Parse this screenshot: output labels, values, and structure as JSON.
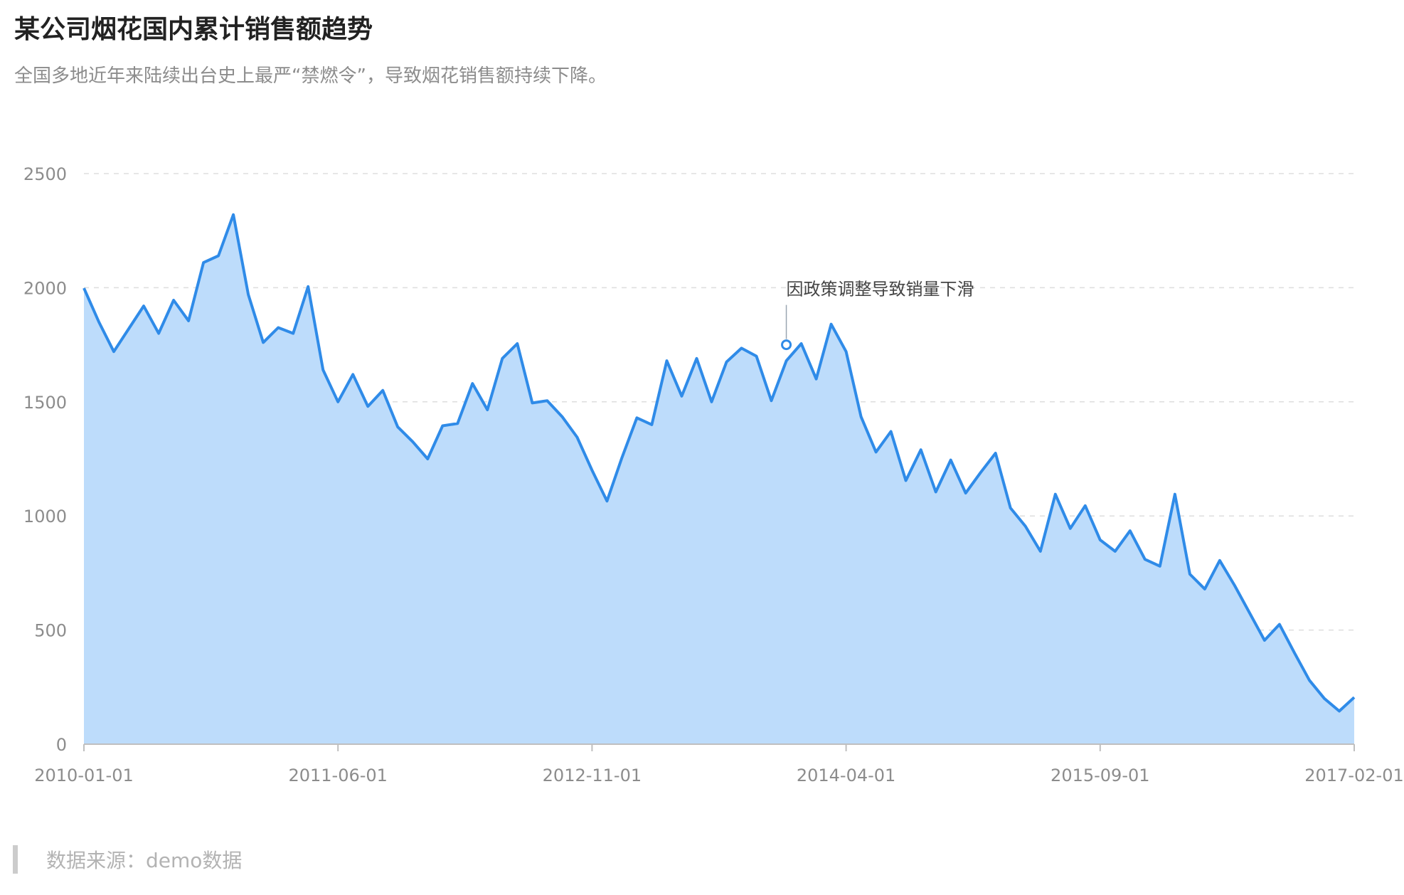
{
  "title": "某公司烟花国内累计销售额趋势",
  "subtitle": "全国多地近年来陆续出台史上最严“禁燃令”，导致烟花销售额持续下降。",
  "source": "数据来源：demo数据",
  "colors": {
    "line": "#2f8be8",
    "area": "#bddcfb",
    "grid": "#dddddd",
    "axis": "#bfbfbf",
    "tick_text": "#8c8c8c",
    "annotation_text": "#444444",
    "annotation_line": "#9aa5b1"
  },
  "chart_data": {
    "type": "area",
    "title": "某公司烟花国内累计销售额趋势",
    "xlabel": "",
    "ylabel": "",
    "ylim": [
      0,
      2500
    ],
    "yticks": [
      0,
      500,
      1000,
      1500,
      2000,
      2500
    ],
    "xticks": [
      "2010-01-01",
      "2011-06-01",
      "2012-11-01",
      "2014-04-01",
      "2015-09-01",
      "2017-02-01"
    ],
    "grid": true,
    "x_start": "2010-01",
    "x_end": "2017-02",
    "x": [
      "2010-01",
      "2010-02",
      "2010-03",
      "2010-04",
      "2010-05",
      "2010-06",
      "2010-07",
      "2010-08",
      "2010-09",
      "2010-10",
      "2010-11",
      "2010-12",
      "2011-01",
      "2011-02",
      "2011-03",
      "2011-04",
      "2011-05",
      "2011-06",
      "2011-07",
      "2011-08",
      "2011-09",
      "2011-10",
      "2011-11",
      "2011-12",
      "2012-01",
      "2012-02",
      "2012-03",
      "2012-04",
      "2012-05",
      "2012-06",
      "2012-07",
      "2012-08",
      "2012-09",
      "2012-10",
      "2012-11",
      "2012-12",
      "2013-01",
      "2013-02",
      "2013-03",
      "2013-04",
      "2013-05",
      "2013-06",
      "2013-07",
      "2013-08",
      "2013-09",
      "2013-10",
      "2013-11",
      "2013-12",
      "2014-01",
      "2014-02",
      "2014-03",
      "2014-04",
      "2014-05",
      "2014-06",
      "2014-07",
      "2014-08",
      "2014-09",
      "2014-10",
      "2014-11",
      "2014-12",
      "2015-01",
      "2015-02",
      "2015-03",
      "2015-04",
      "2015-05",
      "2015-06",
      "2015-07",
      "2015-08",
      "2015-09",
      "2015-10",
      "2015-11",
      "2015-12",
      "2016-01",
      "2016-02",
      "2016-03",
      "2016-04",
      "2016-05",
      "2016-06",
      "2016-07",
      "2016-08",
      "2016-09",
      "2016-10",
      "2016-11",
      "2016-12",
      "2017-01",
      "2017-02"
    ],
    "values": [
      1998,
      1850,
      1720,
      1820,
      1920,
      1800,
      1945,
      1855,
      2110,
      2140,
      2320,
      1970,
      1760,
      1825,
      1800,
      2005,
      1640,
      1500,
      1620,
      1480,
      1550,
      1390,
      1325,
      1250,
      1395,
      1405,
      1580,
      1465,
      1690,
      1755,
      1495,
      1505,
      1435,
      1345,
      1200,
      1065,
      1255,
      1430,
      1400,
      1680,
      1525,
      1690,
      1500,
      1675,
      1735,
      1700,
      1505,
      1680,
      1755,
      1600,
      1840,
      1720,
      1435,
      1280,
      1370,
      1155,
      1290,
      1105,
      1245,
      1100,
      1190,
      1275,
      1035,
      955,
      845,
      1095,
      945,
      1045,
      895,
      845,
      935,
      810,
      780,
      1095,
      745,
      680,
      805,
      695,
      575,
      455,
      525,
      400,
      280,
      200,
      145,
      205
    ],
    "annotation": {
      "x": "2013-12",
      "value": 1750,
      "text": "因政策调整导致销量下滑"
    }
  }
}
